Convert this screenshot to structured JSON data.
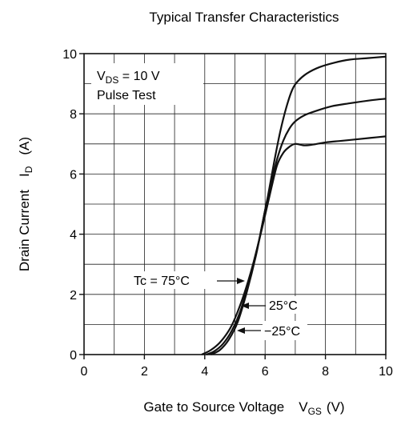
{
  "chart_data": {
    "type": "line",
    "title": "Typical Transfer Characteristics",
    "xlabel": {
      "main": "Gate to Source Voltage",
      "sym": "V",
      "sub": "GS",
      "unit": "(V)"
    },
    "ylabel": {
      "main": "Drain Current",
      "sym": "I",
      "sub": "D",
      "unit": "(A)"
    },
    "xlim": [
      0,
      10
    ],
    "ylim": [
      0,
      10
    ],
    "x_ticks": [
      0,
      2,
      4,
      6,
      8,
      10
    ],
    "y_ticks": [
      0,
      2,
      4,
      6,
      8,
      10
    ],
    "grid": true,
    "conditions": {
      "vds_sym": "V",
      "vds_sub": "DS",
      "vds_value": " = 10 V",
      "pulse": "Pulse Test"
    },
    "series": [
      {
        "name": "Tc = 75°C",
        "x": [
          3.9,
          4.2,
          4.5,
          4.8,
          5.0,
          5.3,
          5.6,
          5.9,
          6.2,
          6.4,
          6.6,
          6.8,
          7.0,
          7.3,
          7.6,
          8.0,
          8.5,
          9.0,
          9.5,
          10.0
        ],
        "y": [
          0.0,
          0.15,
          0.4,
          0.8,
          1.2,
          2.0,
          3.0,
          4.2,
          5.5,
          6.3,
          6.7,
          6.9,
          7.0,
          6.95,
          6.98,
          7.05,
          7.1,
          7.15,
          7.2,
          7.25
        ]
      },
      {
        "name": "25°C",
        "x": [
          4.05,
          4.3,
          4.6,
          4.9,
          5.2,
          5.5,
          5.8,
          6.0,
          6.2,
          6.4,
          6.6,
          6.8,
          7.0,
          7.3,
          7.7,
          8.2,
          8.8,
          9.5,
          10.0
        ],
        "y": [
          0.0,
          0.1,
          0.35,
          0.8,
          1.5,
          2.6,
          3.8,
          4.8,
          5.7,
          6.5,
          7.1,
          7.5,
          7.75,
          7.95,
          8.1,
          8.25,
          8.35,
          8.45,
          8.5
        ]
      },
      {
        "name": "−25°C",
        "x": [
          4.2,
          4.5,
          4.8,
          5.1,
          5.4,
          5.7,
          5.9,
          6.1,
          6.3,
          6.5,
          6.7,
          6.9,
          7.1,
          7.4,
          7.8,
          8.3,
          8.8,
          9.4,
          10.0
        ],
        "y": [
          0.0,
          0.15,
          0.5,
          1.1,
          2.1,
          3.3,
          4.3,
          5.3,
          6.4,
          7.4,
          8.2,
          8.8,
          9.1,
          9.35,
          9.55,
          9.7,
          9.8,
          9.85,
          9.9
        ]
      }
    ],
    "annotations": [
      "Tc = 75°C",
      "25°C",
      "−25°C"
    ]
  }
}
